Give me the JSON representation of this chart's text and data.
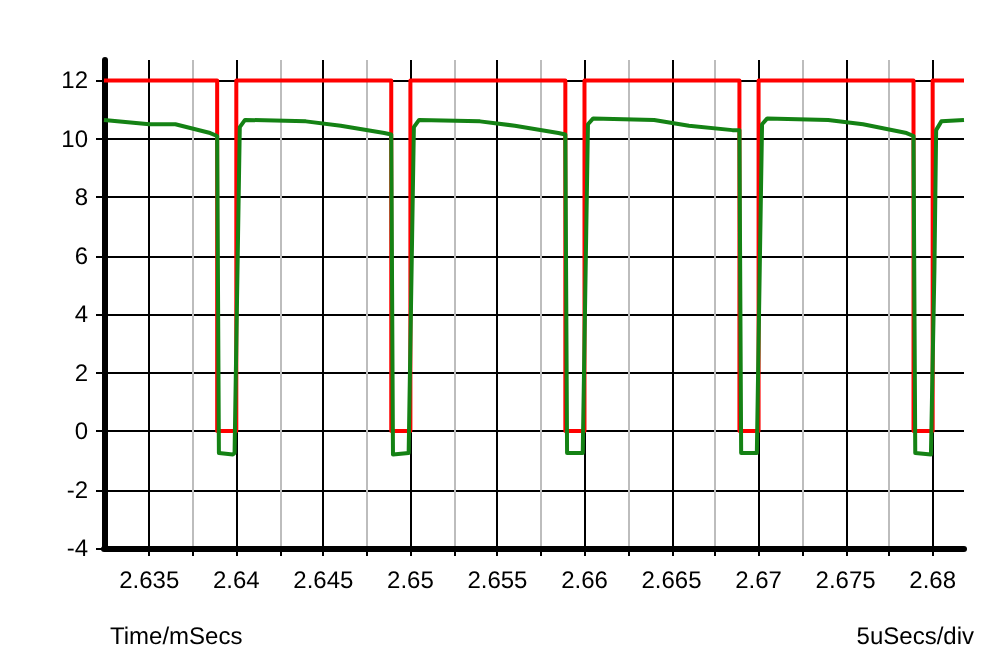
{
  "chart_data": {
    "type": "line",
    "xlabel": "Time/mSecs",
    "annotations": [
      "5uSecs/div"
    ],
    "xlim": [
      2.6324,
      2.6818
    ],
    "ylim": [
      -4,
      12.7
    ],
    "xticks": [
      2.635,
      {
        "value": 2.6375,
        "label": null
      },
      2.64,
      {
        "value": 2.6425,
        "label": null
      },
      2.645,
      {
        "value": 2.6475,
        "label": null
      },
      2.65,
      {
        "value": 2.6525,
        "label": null
      },
      2.655,
      {
        "value": 2.6575,
        "label": null
      },
      2.66,
      {
        "value": 2.6625,
        "label": null
      },
      2.665,
      {
        "value": 2.6675,
        "label": null
      },
      2.67,
      {
        "value": 2.6725,
        "label": null
      },
      2.675,
      {
        "value": 2.6775,
        "label": null
      },
      2.68
    ],
    "yticks": [
      -4,
      -2,
      0,
      2,
      4,
      6,
      8,
      10,
      12
    ],
    "grid": true,
    "marker": "none",
    "line_style": "solid",
    "series": [
      {
        "color": "#ff0000",
        "x": [
          2.6324,
          2.6389,
          2.6389,
          2.64,
          2.64,
          2.6489,
          2.6489,
          2.65,
          2.65,
          2.6589,
          2.6589,
          2.66,
          2.66,
          2.6689,
          2.6689,
          2.67,
          2.67,
          2.6789,
          2.6789,
          2.68,
          2.68,
          2.6818
        ],
        "values": [
          12,
          12,
          0,
          0,
          12,
          12,
          0,
          0,
          12,
          12,
          0,
          0,
          12,
          12,
          0,
          0,
          12,
          12,
          0,
          0,
          12,
          12
        ]
      },
      {
        "color": "#148214",
        "x": [
          2.6324,
          2.635,
          2.6365,
          2.6385,
          2.6389,
          2.639,
          2.6398,
          2.6399,
          2.6401,
          2.6402,
          2.6405,
          2.644,
          2.646,
          2.6485,
          2.6489,
          2.649,
          2.6499,
          2.6501,
          2.6502,
          2.6505,
          2.654,
          2.656,
          2.6585,
          2.6589,
          2.659,
          2.6599,
          2.6601,
          2.6602,
          2.6605,
          2.664,
          2.666,
          2.6685,
          2.6689,
          2.669,
          2.6699,
          2.6701,
          2.6702,
          2.6705,
          2.674,
          2.676,
          2.6785,
          2.6789,
          2.679,
          2.6799,
          2.6801,
          2.6802,
          2.6805,
          2.6818
        ],
        "values": [
          10.65,
          10.5,
          10.5,
          10.2,
          10.1,
          -0.75,
          -0.8,
          -0.75,
          6.7,
          10.4,
          10.65,
          10.6,
          10.45,
          10.2,
          10.15,
          -0.8,
          -0.75,
          6.7,
          10.4,
          10.65,
          10.6,
          10.45,
          10.2,
          10.15,
          -0.75,
          -0.75,
          6.8,
          10.5,
          10.7,
          10.65,
          10.45,
          10.3,
          10.3,
          -0.75,
          -0.75,
          6.8,
          10.5,
          10.7,
          10.65,
          10.5,
          10.2,
          10.1,
          -0.75,
          -0.8,
          5.5,
          10.3,
          10.6,
          10.65
        ]
      }
    ]
  }
}
